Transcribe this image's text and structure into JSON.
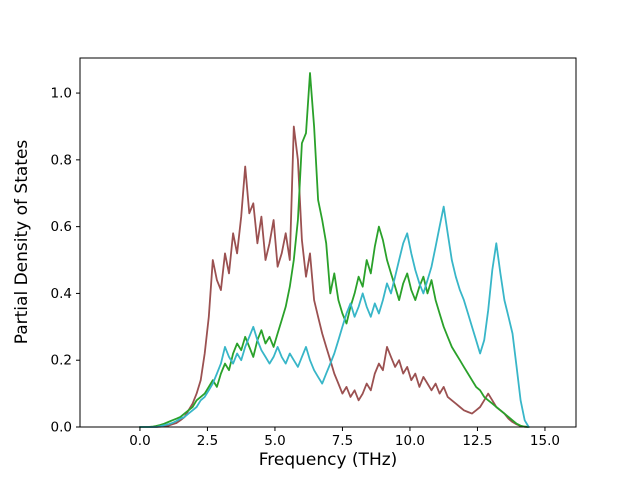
{
  "figure": {
    "background": "#ffffff"
  },
  "chart_data": {
    "type": "line",
    "title": "",
    "xlabel": "Frequency (THz)",
    "ylabel": "Partial Density of States",
    "xlim": [
      -2.22,
      16.15
    ],
    "ylim": [
      0,
      1.105
    ],
    "grid": false,
    "legend": "none",
    "xticks": {
      "values": [
        0,
        2.5,
        5,
        7.5,
        10,
        12.5,
        15
      ],
      "labels": [
        "0.0",
        "2.5",
        "5.0",
        "7.5",
        "10.0",
        "12.5",
        "15.0"
      ]
    },
    "yticks": {
      "values": [
        0,
        0.2,
        0.4,
        0.6,
        0.8,
        1.0
      ],
      "labels": [
        "0.0",
        "0.2",
        "0.4",
        "0.6",
        "0.8",
        "1.0"
      ]
    },
    "x_start": 0.0,
    "x_step": 0.15,
    "series": [
      {
        "name": "maroon",
        "color": "#9b5151",
        "values": [
          0,
          0,
          0,
          0,
          0,
          0.001,
          0.002,
          0.004,
          0.008,
          0.012,
          0.02,
          0.03,
          0.05,
          0.07,
          0.1,
          0.14,
          0.22,
          0.33,
          0.5,
          0.44,
          0.41,
          0.52,
          0.46,
          0.58,
          0.52,
          0.63,
          0.78,
          0.64,
          0.67,
          0.55,
          0.63,
          0.5,
          0.55,
          0.62,
          0.48,
          0.52,
          0.58,
          0.5,
          0.9,
          0.8,
          0.56,
          0.45,
          0.52,
          0.38,
          0.33,
          0.28,
          0.24,
          0.2,
          0.16,
          0.13,
          0.1,
          0.12,
          0.09,
          0.11,
          0.08,
          0.1,
          0.13,
          0.11,
          0.16,
          0.19,
          0.17,
          0.24,
          0.21,
          0.18,
          0.2,
          0.16,
          0.18,
          0.14,
          0.16,
          0.12,
          0.15,
          0.13,
          0.11,
          0.13,
          0.1,
          0.12,
          0.09,
          0.08,
          0.07,
          0.06,
          0.05,
          0.045,
          0.04,
          0.05,
          0.06,
          0.08,
          0.1,
          0.08,
          0.06,
          0.05,
          0.04,
          0.025,
          0.015,
          0.008,
          0.003,
          0.001,
          0
        ]
      },
      {
        "name": "green",
        "color": "#2aa12a",
        "values": [
          0,
          0,
          0,
          0.001,
          0.003,
          0.006,
          0.01,
          0.015,
          0.02,
          0.025,
          0.03,
          0.04,
          0.05,
          0.06,
          0.08,
          0.09,
          0.1,
          0.12,
          0.14,
          0.12,
          0.16,
          0.19,
          0.17,
          0.22,
          0.25,
          0.23,
          0.27,
          0.24,
          0.21,
          0.26,
          0.29,
          0.25,
          0.27,
          0.24,
          0.28,
          0.32,
          0.36,
          0.42,
          0.5,
          0.62,
          0.85,
          0.88,
          1.06,
          0.9,
          0.68,
          0.62,
          0.55,
          0.4,
          0.46,
          0.38,
          0.34,
          0.31,
          0.36,
          0.4,
          0.45,
          0.42,
          0.5,
          0.46,
          0.54,
          0.6,
          0.56,
          0.5,
          0.46,
          0.42,
          0.38,
          0.43,
          0.46,
          0.41,
          0.38,
          0.42,
          0.45,
          0.4,
          0.44,
          0.38,
          0.34,
          0.3,
          0.27,
          0.24,
          0.22,
          0.2,
          0.18,
          0.16,
          0.14,
          0.12,
          0.11,
          0.09,
          0.08,
          0.07,
          0.06,
          0.05,
          0.04,
          0.03,
          0.02,
          0.01,
          0.004,
          0.001,
          0
        ]
      },
      {
        "name": "cyan",
        "color": "#38b6c8",
        "values": [
          0,
          0,
          0,
          0,
          0,
          0.002,
          0.005,
          0.008,
          0.012,
          0.018,
          0.025,
          0.03,
          0.04,
          0.05,
          0.06,
          0.08,
          0.09,
          0.11,
          0.13,
          0.16,
          0.19,
          0.24,
          0.21,
          0.19,
          0.22,
          0.2,
          0.24,
          0.27,
          0.3,
          0.26,
          0.23,
          0.21,
          0.19,
          0.21,
          0.24,
          0.21,
          0.19,
          0.22,
          0.2,
          0.18,
          0.21,
          0.24,
          0.2,
          0.17,
          0.15,
          0.13,
          0.16,
          0.19,
          0.22,
          0.26,
          0.3,
          0.34,
          0.37,
          0.33,
          0.36,
          0.4,
          0.36,
          0.33,
          0.37,
          0.34,
          0.38,
          0.43,
          0.4,
          0.45,
          0.5,
          0.55,
          0.58,
          0.52,
          0.47,
          0.43,
          0.4,
          0.44,
          0.48,
          0.54,
          0.6,
          0.66,
          0.58,
          0.5,
          0.45,
          0.41,
          0.38,
          0.34,
          0.3,
          0.26,
          0.22,
          0.26,
          0.35,
          0.47,
          0.55,
          0.46,
          0.38,
          0.33,
          0.28,
          0.18,
          0.08,
          0.02,
          0
        ]
      }
    ]
  }
}
